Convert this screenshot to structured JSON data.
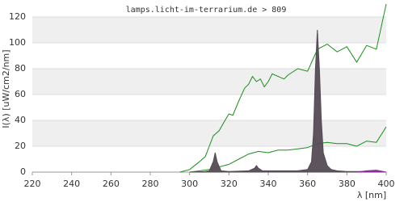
{
  "chart_data": {
    "type": "line",
    "title": "lamps.licht-im-terrarium.de > 809",
    "x_label": "λ [nm]",
    "y_label": "I(λ) [uW/cm2/nm]",
    "xlim": [
      220,
      400
    ],
    "xticks": [
      220,
      240,
      260,
      280,
      300,
      320,
      340,
      360,
      380,
      400
    ],
    "ylim": [
      0,
      130
    ],
    "yticks": [
      0,
      20,
      40,
      60,
      80,
      100,
      120
    ],
    "grid": true,
    "series": [
      {
        "color": "#1e8c1e",
        "area": false,
        "x": [
          295,
          300,
          305,
          308,
          310,
          312,
          315,
          318,
          320,
          322,
          325,
          328,
          330,
          332,
          334,
          336,
          338,
          340,
          342,
          345,
          348,
          350,
          355,
          360,
          365,
          370,
          375,
          380,
          385,
          390,
          395,
          400
        ],
        "values": [
          0,
          2,
          8,
          12,
          20,
          28,
          32,
          40,
          45,
          44,
          55,
          65,
          68,
          74,
          70,
          72,
          66,
          70,
          76,
          74,
          72,
          75,
          80,
          78,
          95,
          99,
          93,
          97,
          85,
          98,
          95,
          130
        ]
      },
      {
        "color": "#1e8c1e",
        "area": false,
        "x": [
          300,
          310,
          320,
          325,
          330,
          335,
          340,
          345,
          350,
          355,
          360,
          365,
          370,
          375,
          380,
          385,
          390,
          395,
          400
        ],
        "values": [
          0,
          2,
          6,
          10,
          14,
          16,
          15,
          17,
          17,
          18,
          19,
          22,
          23,
          22,
          22,
          20,
          24,
          23,
          35
        ]
      },
      {
        "color": "#554b55",
        "area": true,
        "x": [
          300,
          308,
          310,
          312,
          313,
          314,
          316,
          320,
          330,
          333,
          334,
          335,
          337,
          345,
          355,
          360,
          362,
          363,
          364,
          365,
          366,
          367,
          368,
          370,
          372,
          375,
          380,
          385,
          390,
          400
        ],
        "values": [
          0,
          0.5,
          1,
          8,
          15,
          8,
          1,
          0.5,
          1,
          3,
          5,
          3,
          1,
          1,
          1,
          2,
          8,
          30,
          80,
          110,
          80,
          40,
          15,
          5,
          2,
          1,
          0.5,
          0.5,
          0.5,
          0
        ]
      },
      {
        "color": "#8a2a9a",
        "area": true,
        "x": [
          385,
          390,
          395,
          400
        ],
        "values": [
          0,
          1,
          1.5,
          0
        ]
      }
    ]
  }
}
